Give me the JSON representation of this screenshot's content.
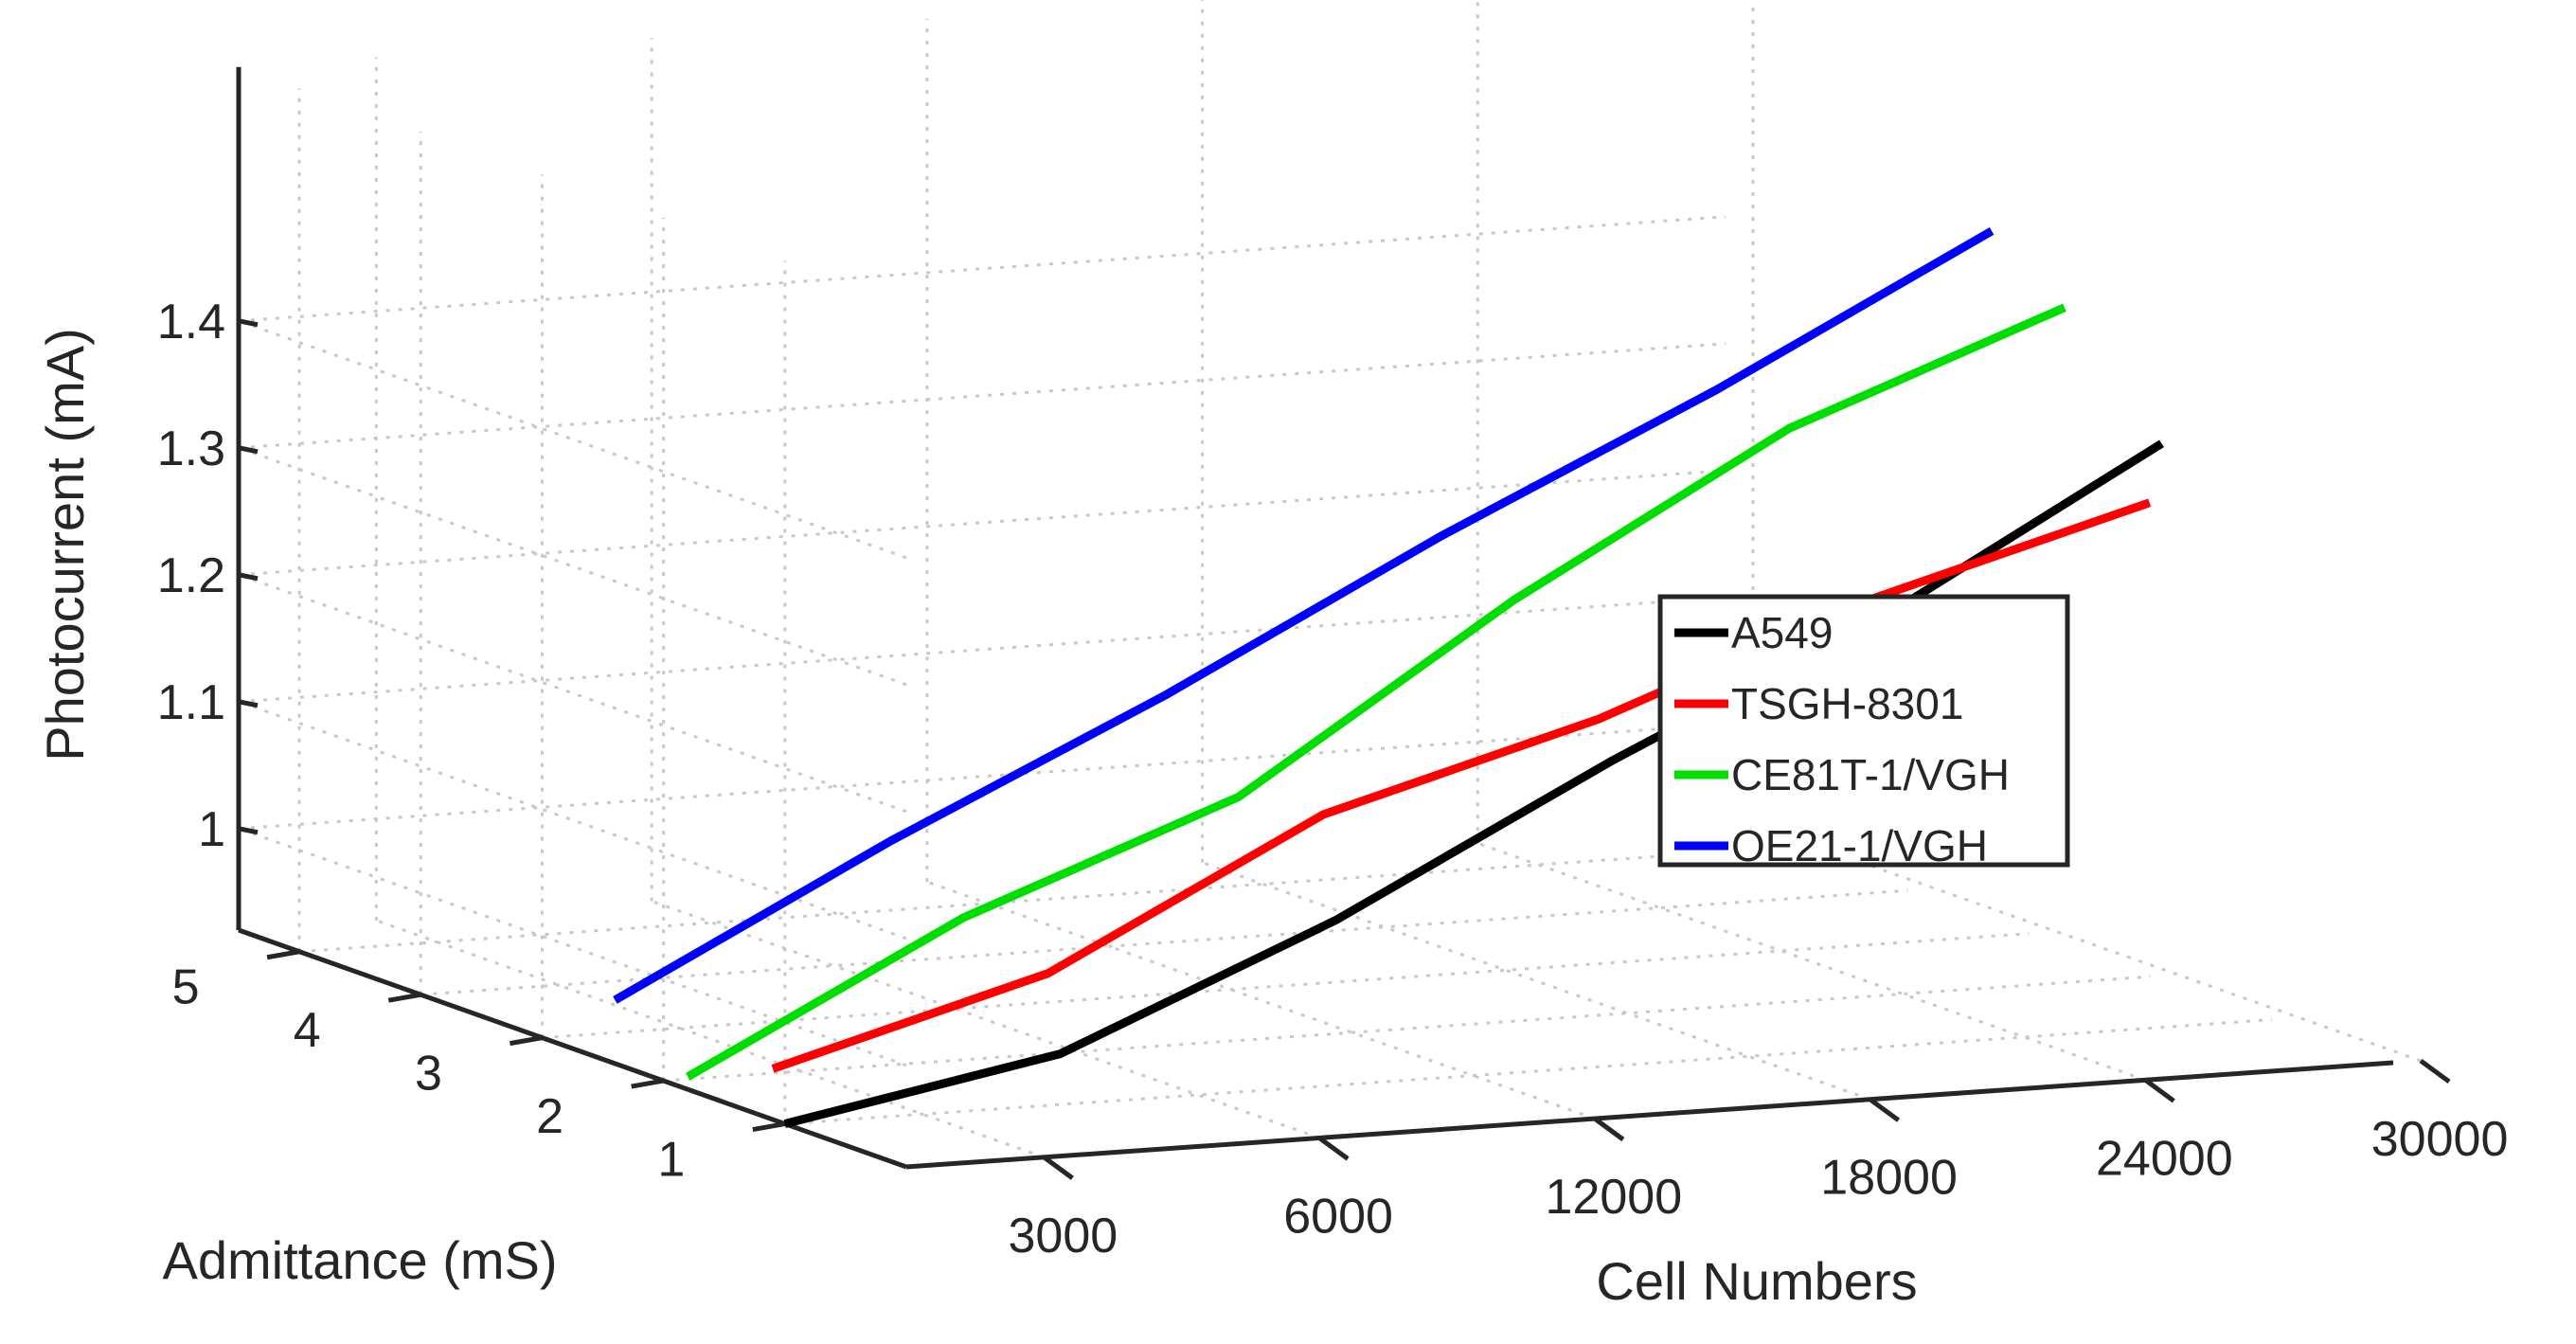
{
  "chart_data": {
    "type": "line",
    "title": "",
    "xlabel": "Cell Numbers",
    "ylabel": "Admittance (mS)",
    "zlabel": "Photocurrent (mA)",
    "x_ticks": [
      "3000",
      "6000",
      "12000",
      "18000",
      "24000",
      "30000"
    ],
    "y_ticks": [
      "1",
      "2",
      "3",
      "4",
      "5"
    ],
    "z_ticks": [
      "1",
      "1.1",
      "1.2",
      "1.3",
      "1.4"
    ],
    "zlim": [
      0.92,
      1.45
    ],
    "grid": true,
    "legend_position": "right",
    "series": [
      {
        "name": "A549",
        "color": "#000000",
        "y": 1.0,
        "z": [
          0.92,
          0.96,
          1.05,
          1.16,
          1.26,
          1.38
        ]
      },
      {
        "name": "TSGH-8301",
        "color": "#ff0000",
        "y": 1.1,
        "z": [
          0.96,
          1.02,
          1.13,
          1.19,
          1.27,
          1.33
        ]
      },
      {
        "name": "CE81T-1/VGH",
        "color": "#00dd00",
        "y": 1.8,
        "z": [
          0.93,
          1.04,
          1.12,
          1.26,
          1.38,
          1.46
        ]
      },
      {
        "name": "OE21-1/VGH",
        "color": "#0000ff",
        "y": 2.4,
        "z": [
          0.97,
          1.08,
          1.18,
          1.29,
          1.39,
          1.5
        ]
      }
    ]
  }
}
